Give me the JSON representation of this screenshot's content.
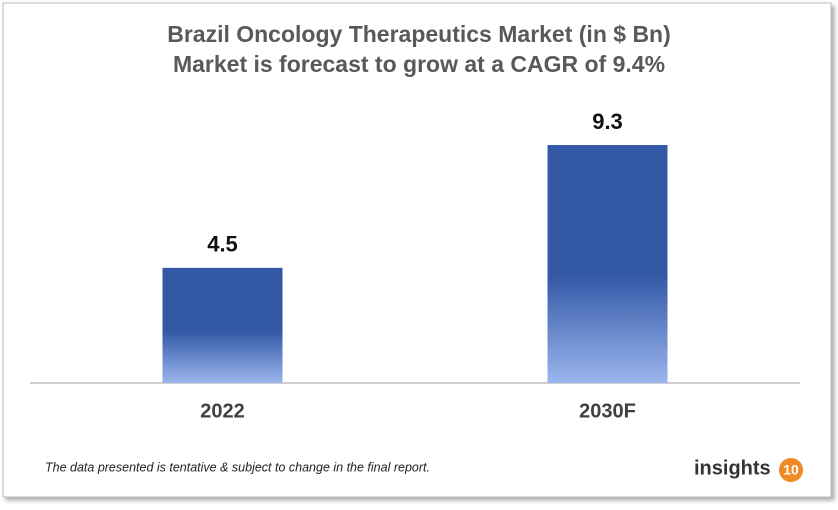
{
  "chart_data": {
    "type": "bar",
    "title": "Brazil Oncology Therapeutics Market (in $ Bn)",
    "subtitle": "Market is forecast to grow at a CAGR of 9.4%",
    "categories": [
      "2022",
      "2030F"
    ],
    "values": [
      4.5,
      9.3
    ],
    "color": "#3358a6",
    "footnote": "The data presented is tentative & subject to change in the final report.",
    "brand": "insights",
    "brand_badge": "10"
  }
}
